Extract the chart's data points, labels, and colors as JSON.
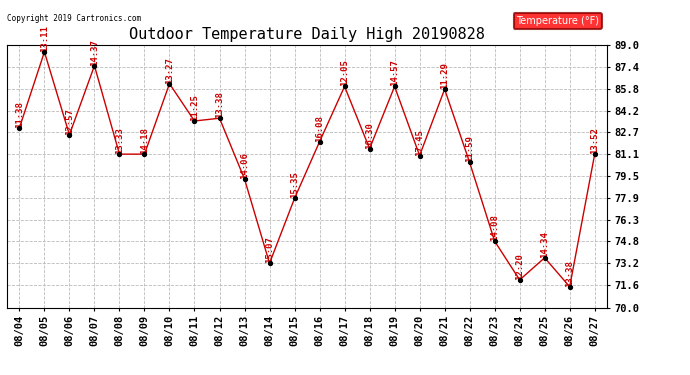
{
  "title": "Outdoor Temperature Daily High 20190828",
  "copyright_text": "Copyright 2019 Cartronics.com",
  "legend_label": "Temperature (°F)",
  "dates": [
    "08/04",
    "08/05",
    "08/06",
    "08/07",
    "08/08",
    "08/09",
    "08/10",
    "08/11",
    "08/12",
    "08/13",
    "08/14",
    "08/15",
    "08/16",
    "08/17",
    "08/18",
    "08/19",
    "08/20",
    "08/21",
    "08/22",
    "08/23",
    "08/24",
    "08/25",
    "08/26",
    "08/27"
  ],
  "temps": [
    83.0,
    88.5,
    82.5,
    87.5,
    81.1,
    81.1,
    86.2,
    83.5,
    83.7,
    79.3,
    73.2,
    77.9,
    82.0,
    86.0,
    81.5,
    86.0,
    81.0,
    85.8,
    80.5,
    74.8,
    72.0,
    73.6,
    71.5,
    81.1
  ],
  "labels": [
    "11:38",
    "13:11",
    "12:57",
    "14:37",
    "13:33",
    "14:18",
    "13:27",
    "11:25",
    "13:38",
    "14:06",
    "15:07",
    "15:35",
    "16:08",
    "12:05",
    "16:30",
    "14:57",
    "17:45",
    "11:29",
    "11:59",
    "14:08",
    "12:20",
    "14:34",
    "13:38",
    "13:52"
  ],
  "line_color": "#cc0000",
  "marker_color": "#000000",
  "label_color": "#cc0000",
  "bg_color": "#ffffff",
  "grid_color": "#bbbbbb",
  "ylim_min": 70.0,
  "ylim_max": 89.0,
  "yticks": [
    70.0,
    71.6,
    73.2,
    74.8,
    76.3,
    77.9,
    79.5,
    81.1,
    82.7,
    84.2,
    85.8,
    87.4,
    89.0
  ],
  "title_fontsize": 11,
  "label_fontsize": 6.5,
  "tick_fontsize": 7.5,
  "copyright_fontsize": 5.5
}
